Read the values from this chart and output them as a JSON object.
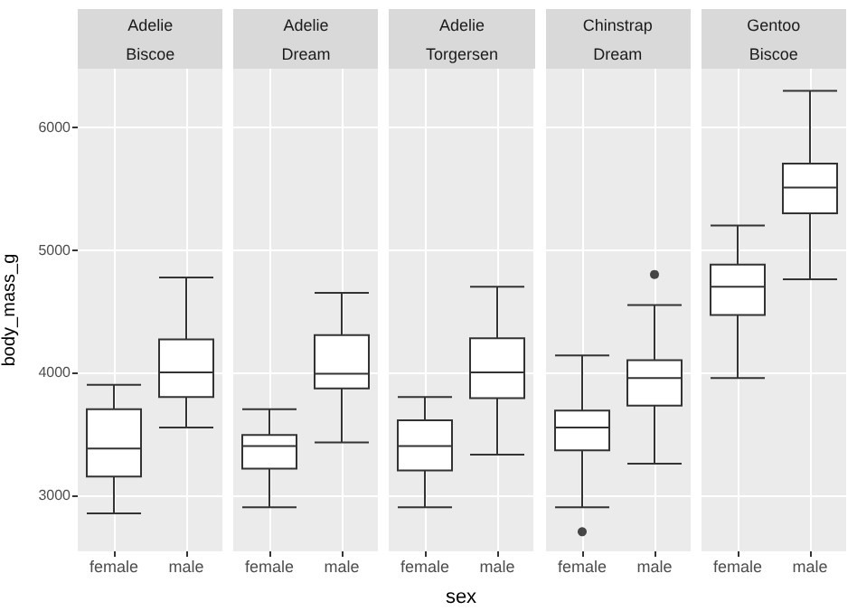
{
  "chart_data": [
    {
      "type": "box",
      "title": "Adelie",
      "subtitle": "Biscoe",
      "ylabel": "body_mass_g",
      "categories": [
        "female",
        "male"
      ],
      "boxes": [
        {
          "low": 2850,
          "q1": 3150,
          "median": 3380,
          "q3": 3700,
          "high": 3900
        },
        {
          "low": 3550,
          "q1": 3800,
          "median": 4000,
          "q3": 4270,
          "high": 4775
        }
      ],
      "ylim": [
        2540,
        6480
      ],
      "yticks": [
        3000,
        4000,
        5000,
        6000
      ],
      "grid": true
    },
    {
      "type": "box",
      "title": "Adelie",
      "subtitle": "Dream",
      "categories": [
        "female",
        "male"
      ],
      "boxes": [
        {
          "low": 2900,
          "q1": 3215,
          "median": 3400,
          "q3": 3490,
          "high": 3700
        },
        {
          "low": 3430,
          "q1": 3870,
          "median": 3990,
          "q3": 4305,
          "high": 4650
        }
      ],
      "ylim": [
        2540,
        6480
      ],
      "yticks": [
        3000,
        4000,
        5000,
        6000
      ],
      "grid": true,
      "tick_labels": "x"
    },
    {
      "type": "box",
      "title": "Adelie",
      "subtitle": "Torgersen",
      "xlabel": "sex",
      "categories": [
        "female",
        "male"
      ],
      "boxes": [
        {
          "low": 2900,
          "q1": 3200,
          "median": 3400,
          "q3": 3610,
          "high": 3800
        },
        {
          "low": 3330,
          "q1": 3790,
          "median": 4000,
          "q3": 4280,
          "high": 4700
        }
      ],
      "ylim": [
        2540,
        6480
      ],
      "yticks": [
        3000,
        4000,
        5000,
        6000
      ],
      "grid": true,
      "tick_labels": "x"
    },
    {
      "type": "box",
      "title": "Chinstrap",
      "subtitle": "Dream",
      "categories": [
        "female",
        "male"
      ],
      "boxes": [
        {
          "low": 2900,
          "q1": 3365,
          "median": 3550,
          "q3": 3690,
          "high": 4140,
          "outliers": [
            2700
          ]
        },
        {
          "low": 3255,
          "q1": 3730,
          "median": 3955,
          "q3": 4100,
          "high": 4550,
          "outliers": [
            4800
          ]
        }
      ],
      "ylim": [
        2540,
        6480
      ],
      "yticks": [
        3000,
        4000,
        5000,
        6000
      ],
      "grid": true,
      "tick_labels": "x"
    },
    {
      "type": "box",
      "title": "Gentoo",
      "subtitle": "Biscoe",
      "categories": [
        "female",
        "male"
      ],
      "boxes": [
        {
          "low": 3955,
          "q1": 4470,
          "median": 4700,
          "q3": 4880,
          "high": 5200
        },
        {
          "low": 4760,
          "q1": 5300,
          "median": 5510,
          "q3": 5705,
          "high": 6300
        }
      ],
      "ylim": [
        2540,
        6480
      ],
      "yticks": [
        3000,
        4000,
        5000,
        6000
      ],
      "grid": true,
      "tick_labels": "x"
    }
  ]
}
